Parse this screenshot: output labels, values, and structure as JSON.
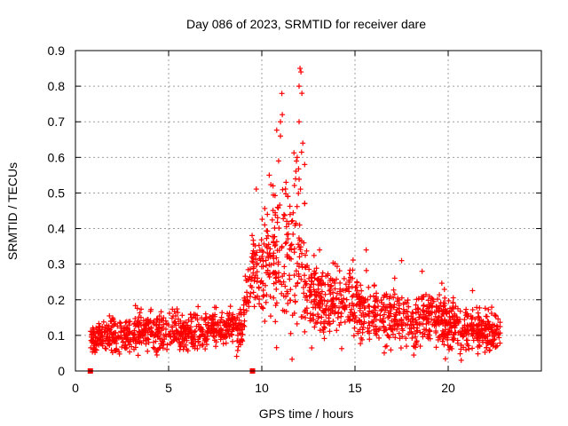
{
  "chart_data": {
    "type": "scatter",
    "title": "Day 086 of 2023, SRMTID for receiver dare",
    "xlabel": "GPS time / hours",
    "ylabel": "SRMTID / TECUs",
    "xlim": [
      0,
      25
    ],
    "ylim": [
      0,
      0.9
    ],
    "xticks": [
      0,
      5,
      10,
      15,
      20
    ],
    "xtick_labels": [
      "0",
      "5",
      "10",
      "15",
      "20"
    ],
    "yticks": [
      0,
      0.1,
      0.2,
      0.3,
      0.4,
      0.5,
      0.6,
      0.7,
      0.8,
      0.9
    ],
    "ytick_labels": [
      "0",
      "0.1",
      "0.2",
      "0.3",
      "0.4",
      "0.5",
      "0.6",
      "0.7",
      "0.8",
      "0.9"
    ],
    "grid": true,
    "marker": "plus",
    "series_color": "#ff0000",
    "x_range_hours": [
      0.8,
      22.8
    ],
    "envelope": [
      {
        "x": 0.8,
        "mean": 0.09,
        "spread": 0.03
      },
      {
        "x": 2.0,
        "mean": 0.1,
        "spread": 0.035
      },
      {
        "x": 3.0,
        "mean": 0.1,
        "spread": 0.03
      },
      {
        "x": 4.0,
        "mean": 0.11,
        "spread": 0.04
      },
      {
        "x": 5.0,
        "mean": 0.11,
        "spread": 0.035
      },
      {
        "x": 6.0,
        "mean": 0.11,
        "spread": 0.035
      },
      {
        "x": 7.0,
        "mean": 0.11,
        "spread": 0.03
      },
      {
        "x": 8.0,
        "mean": 0.12,
        "spread": 0.03
      },
      {
        "x": 9.0,
        "mean": 0.12,
        "spread": 0.04
      },
      {
        "x": 9.3,
        "mean": 0.26,
        "spread": 0.07
      },
      {
        "x": 10.0,
        "mean": 0.3,
        "spread": 0.1
      },
      {
        "x": 11.0,
        "mean": 0.32,
        "spread": 0.14
      },
      {
        "x": 12.0,
        "mean": 0.33,
        "spread": 0.18
      },
      {
        "x": 12.5,
        "mean": 0.22,
        "spread": 0.07
      },
      {
        "x": 13.5,
        "mean": 0.2,
        "spread": 0.06
      },
      {
        "x": 14.5,
        "mean": 0.2,
        "spread": 0.06
      },
      {
        "x": 15.5,
        "mean": 0.17,
        "spread": 0.06
      },
      {
        "x": 16.5,
        "mean": 0.15,
        "spread": 0.05
      },
      {
        "x": 18.0,
        "mean": 0.14,
        "spread": 0.05
      },
      {
        "x": 19.0,
        "mean": 0.15,
        "spread": 0.05
      },
      {
        "x": 20.0,
        "mean": 0.13,
        "spread": 0.05
      },
      {
        "x": 21.0,
        "mean": 0.12,
        "spread": 0.04
      },
      {
        "x": 22.0,
        "mean": 0.11,
        "spread": 0.04
      },
      {
        "x": 22.8,
        "mean": 0.11,
        "spread": 0.04
      }
    ],
    "peaks": [
      {
        "x": 10.4,
        "y": 0.55
      },
      {
        "x": 10.6,
        "y": 0.52
      },
      {
        "x": 10.9,
        "y": 0.59
      },
      {
        "x": 11.0,
        "y": 0.66
      },
      {
        "x": 11.1,
        "y": 0.72
      },
      {
        "x": 11.0,
        "y": 0.7
      },
      {
        "x": 11.3,
        "y": 0.53
      },
      {
        "x": 11.4,
        "y": 0.49
      },
      {
        "x": 11.9,
        "y": 0.6
      },
      {
        "x": 12.0,
        "y": 0.7
      },
      {
        "x": 12.0,
        "y": 0.8
      },
      {
        "x": 12.05,
        "y": 0.85
      },
      {
        "x": 12.1,
        "y": 0.84
      },
      {
        "x": 12.15,
        "y": 0.78
      },
      {
        "x": 12.2,
        "y": 0.64
      },
      {
        "x": 12.3,
        "y": 0.58
      },
      {
        "x": 12.3,
        "y": 0.47
      },
      {
        "x": 10.3,
        "y": 0.44
      },
      {
        "x": 11.6,
        "y": 0.42
      },
      {
        "x": 13.1,
        "y": 0.34
      },
      {
        "x": 15.6,
        "y": 0.34
      },
      {
        "x": 17.5,
        "y": 0.31
      },
      {
        "x": 18.6,
        "y": 0.28
      },
      {
        "x": 20.7,
        "y": 0.03
      }
    ],
    "zero_markers": [
      0.8,
      9.5
    ]
  }
}
